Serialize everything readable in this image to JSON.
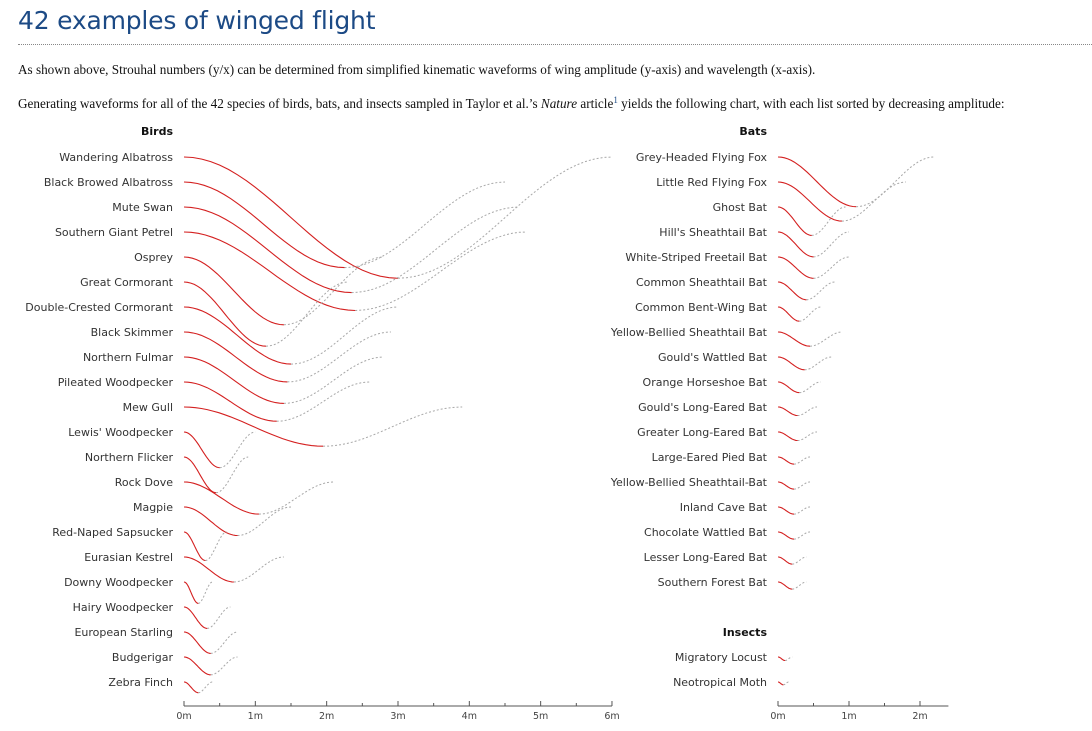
{
  "page": {
    "title": "42 examples of winged flight",
    "para1": "As shown above, Strouhal numbers (y/x) can be determined from simplified kinematic waveforms of wing amplitude (y-axis) and wavelength (x-axis).",
    "para2_before": "Generating waveforms for all of the 42 species of birds, bats, and insects sampled in Taylor et al.’s ",
    "para2_em": "Nature",
    "para2_mid": " article",
    "para2_sup": "1",
    "para2_after": " yields the following chart, with each list sorted by decreasing amplitude:"
  },
  "colors": {
    "wave": "#d42020",
    "tail": "#a8a8a8",
    "axis": "#555555",
    "title": "#1c4a85"
  },
  "chart_data": [
    {
      "type": "line",
      "title": "Birds",
      "unit": "m",
      "x_ticks": [
        "0m",
        "1m",
        "2m",
        "3m",
        "4m",
        "5m",
        "6m"
      ],
      "xlim": [
        0,
        6
      ],
      "series": [
        {
          "name": "Wandering Albatross",
          "wavelength": 6.0,
          "amplitude": 1.7
        },
        {
          "name": "Black Browed Albatross",
          "wavelength": 4.5,
          "amplitude": 1.2
        },
        {
          "name": "Mute Swan",
          "wavelength": 4.7,
          "amplitude": 1.2
        },
        {
          "name": "Southern Giant Petrel",
          "wavelength": 4.8,
          "amplitude": 1.1
        },
        {
          "name": "Osprey",
          "wavelength": 2.8,
          "amplitude": 0.95
        },
        {
          "name": "Great Cormorant",
          "wavelength": 2.3,
          "amplitude": 0.9
        },
        {
          "name": "Double-Crested Cormorant",
          "wavelength": 3.0,
          "amplitude": 0.8
        },
        {
          "name": "Black Skimmer",
          "wavelength": 2.9,
          "amplitude": 0.7
        },
        {
          "name": "Northern Fulmar",
          "wavelength": 2.8,
          "amplitude": 0.65
        },
        {
          "name": "Pileated Woodpecker",
          "wavelength": 2.6,
          "amplitude": 0.55
        },
        {
          "name": "Mew Gull",
          "wavelength": 3.9,
          "amplitude": 0.55
        },
        {
          "name": "Lewis' Woodpecker",
          "wavelength": 1.0,
          "amplitude": 0.5
        },
        {
          "name": "Northern Flicker",
          "wavelength": 0.9,
          "amplitude": 0.5
        },
        {
          "name": "Rock Dove",
          "wavelength": 2.1,
          "amplitude": 0.45
        },
        {
          "name": "Magpie",
          "wavelength": 1.5,
          "amplitude": 0.4
        },
        {
          "name": "Red-Naped Sapsucker",
          "wavelength": 0.6,
          "amplitude": 0.4
        },
        {
          "name": "Eurasian Kestrel",
          "wavelength": 1.4,
          "amplitude": 0.35
        },
        {
          "name": "Downy Woodpecker",
          "wavelength": 0.4,
          "amplitude": 0.3
        },
        {
          "name": "Hairy Woodpecker",
          "wavelength": 0.65,
          "amplitude": 0.3
        },
        {
          "name": "European Starling",
          "wavelength": 0.75,
          "amplitude": 0.3
        },
        {
          "name": "Budgerigar",
          "wavelength": 0.75,
          "amplitude": 0.25
        },
        {
          "name": "Zebra Finch",
          "wavelength": 0.4,
          "amplitude": 0.15
        }
      ]
    },
    {
      "type": "line",
      "title": "Bats",
      "unit": "m",
      "x_ticks": [
        "0m",
        "1m",
        "2m"
      ],
      "xlim": [
        0,
        2.4
      ],
      "series": [
        {
          "name": "Grey-Headed Flying Fox",
          "wavelength": 2.2,
          "amplitude": 0.7
        },
        {
          "name": "Little Red Flying Fox",
          "wavelength": 1.8,
          "amplitude": 0.55
        },
        {
          "name": "Ghost Bat",
          "wavelength": 0.95,
          "amplitude": 0.4
        },
        {
          "name": "Hill's Sheathtail Bat",
          "wavelength": 1.0,
          "amplitude": 0.35
        },
        {
          "name": "White-Striped Freetail Bat",
          "wavelength": 1.0,
          "amplitude": 0.3
        },
        {
          "name": "Common Sheathtail Bat",
          "wavelength": 0.8,
          "amplitude": 0.25
        },
        {
          "name": "Common Bent-Wing Bat",
          "wavelength": 0.6,
          "amplitude": 0.2
        },
        {
          "name": "Yellow-Bellied Sheathtail Bat",
          "wavelength": 0.9,
          "amplitude": 0.2
        },
        {
          "name": "Gould's Wattled Bat",
          "wavelength": 0.75,
          "amplitude": 0.18
        },
        {
          "name": "Orange Horseshoe Bat",
          "wavelength": 0.6,
          "amplitude": 0.15
        },
        {
          "name": "Gould's Long-Eared Bat",
          "wavelength": 0.55,
          "amplitude": 0.12
        },
        {
          "name": "Greater Long-Eared Bat",
          "wavelength": 0.55,
          "amplitude": 0.12
        },
        {
          "name": "Large-Eared Pied Bat",
          "wavelength": 0.45,
          "amplitude": 0.1
        },
        {
          "name": "Yellow-Bellied Sheathtail-Bat",
          "wavelength": 0.45,
          "amplitude": 0.1
        },
        {
          "name": "Inland Cave Bat",
          "wavelength": 0.45,
          "amplitude": 0.1
        },
        {
          "name": "Chocolate Wattled Bat",
          "wavelength": 0.45,
          "amplitude": 0.1
        },
        {
          "name": "Lesser Long-Eared Bat",
          "wavelength": 0.4,
          "amplitude": 0.1
        },
        {
          "name": "Southern Forest Bat",
          "wavelength": 0.4,
          "amplitude": 0.1
        }
      ]
    },
    {
      "type": "line",
      "title": "Insects",
      "unit": "m",
      "series": [
        {
          "name": "Migratory Locust",
          "wavelength": 0.2,
          "amplitude": 0.05
        },
        {
          "name": "Neotropical Moth",
          "wavelength": 0.15,
          "amplitude": 0.04
        }
      ]
    }
  ]
}
